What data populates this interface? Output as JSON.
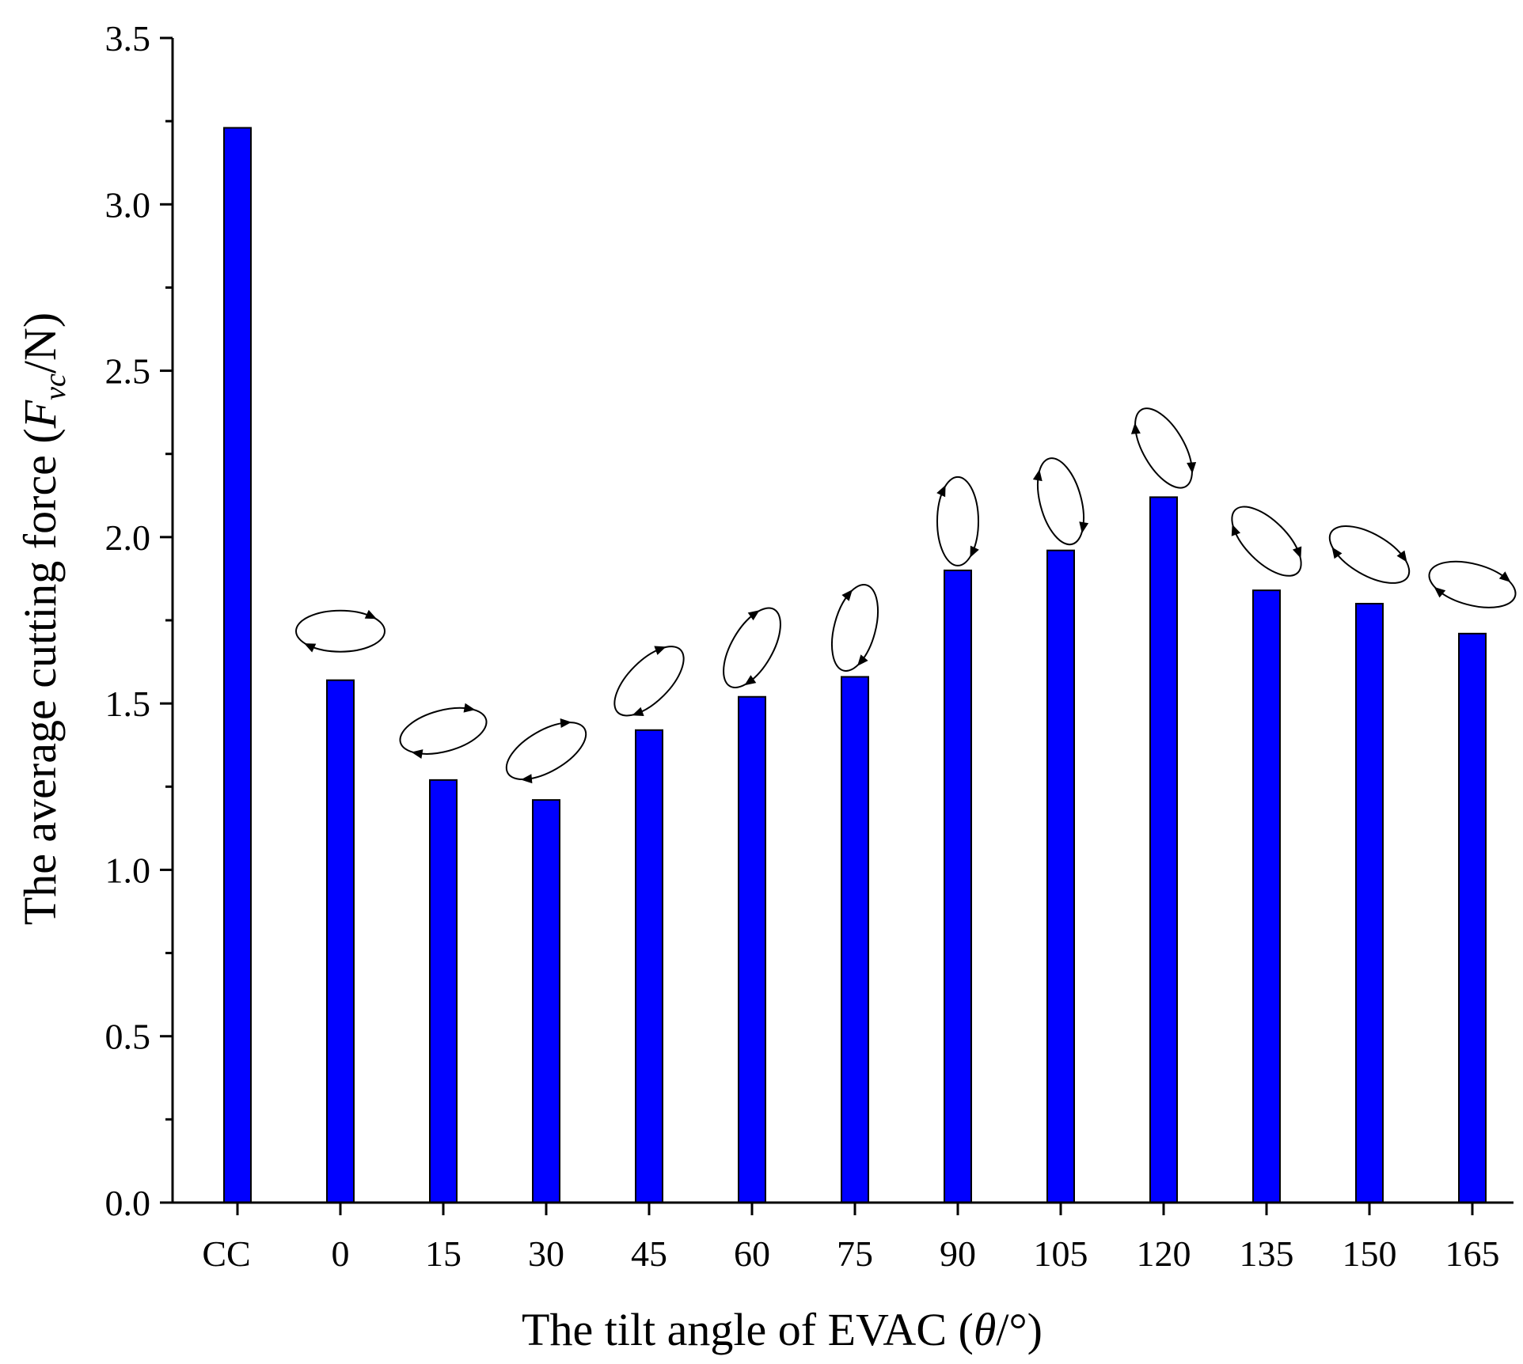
{
  "chart_data": {
    "type": "bar",
    "title": "",
    "xlabel_parts": [
      "The tilt angle of EVAC (",
      "θ",
      "/°)"
    ],
    "ylabel_parts": [
      "The average cutting force (",
      "F",
      "vc",
      "/N)"
    ],
    "categories": [
      "CC",
      "0",
      "15",
      "30",
      "45",
      "60",
      "75",
      "90",
      "105",
      "120",
      "135",
      "150",
      "165"
    ],
    "values": [
      3.23,
      1.57,
      1.27,
      1.21,
      1.42,
      1.52,
      1.58,
      1.9,
      1.96,
      2.12,
      1.84,
      1.8,
      1.71
    ],
    "ylim": [
      0,
      3.5
    ],
    "yticks": [
      "0.0",
      "0.5",
      "1.0",
      "1.5",
      "2.0",
      "2.5",
      "3.0",
      "3.5"
    ],
    "grid": false,
    "bar_color": "#0000ff",
    "annotations": {
      "description_icon": "elliptical-trajectory-icon",
      "tilt_angles_deg": [
        null,
        0,
        15,
        30,
        45,
        60,
        75,
        90,
        105,
        120,
        135,
        150,
        165
      ]
    }
  }
}
